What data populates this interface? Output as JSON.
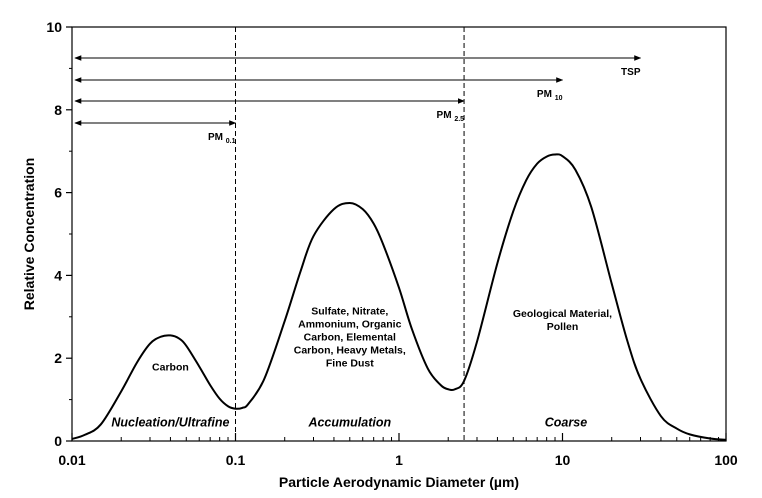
{
  "chart_data": {
    "type": "line",
    "xlabel": "Particle Aerodynamic Diameter (µm)",
    "ylabel": "Relative Concentration",
    "xscale": "log",
    "xlim": [
      0.01,
      100
    ],
    "ylim": [
      0,
      10
    ],
    "xticks": [
      {
        "value": 0.01,
        "label": "0.01"
      },
      {
        "value": 0.1,
        "label": "0.1"
      },
      {
        "value": 1,
        "label": "1"
      },
      {
        "value": 10,
        "label": "10"
      },
      {
        "value": 100,
        "label": "100"
      }
    ],
    "yticks": [
      {
        "value": 0,
        "label": "0"
      },
      {
        "value": 2,
        "label": "2"
      },
      {
        "value": 4,
        "label": "4"
      },
      {
        "value": 6,
        "label": "6"
      },
      {
        "value": 8,
        "label": "8"
      },
      {
        "value": 10,
        "label": "10"
      }
    ],
    "grid": false,
    "series": [
      {
        "x": [
          0.01,
          0.012,
          0.015,
          0.02,
          0.025,
          0.03,
          0.035,
          0.04,
          0.045,
          0.05,
          0.06,
          0.07,
          0.08,
          0.09,
          0.1,
          0.11,
          0.12,
          0.15,
          0.2,
          0.25,
          0.3,
          0.4,
          0.5,
          0.6,
          0.7,
          0.8,
          1,
          1.2,
          1.5,
          1.8,
          2,
          2.2,
          2.5,
          3,
          4,
          5,
          6,
          7,
          8,
          9,
          10,
          12,
          15,
          20,
          25,
          30,
          40,
          50,
          60,
          80,
          100
        ],
        "y": [
          0.05,
          0.15,
          0.4,
          1.2,
          1.9,
          2.35,
          2.52,
          2.55,
          2.48,
          2.3,
          1.8,
          1.35,
          1.02,
          0.84,
          0.78,
          0.8,
          0.9,
          1.5,
          2.9,
          4.1,
          4.95,
          5.6,
          5.75,
          5.6,
          5.25,
          4.75,
          3.7,
          2.7,
          1.75,
          1.35,
          1.25,
          1.25,
          1.45,
          2.4,
          4.3,
          5.55,
          6.3,
          6.7,
          6.87,
          6.92,
          6.88,
          6.55,
          5.65,
          3.8,
          2.4,
          1.5,
          0.6,
          0.3,
          0.16,
          0.06,
          0.03
        ]
      }
    ],
    "dashed_vlines": [
      0.1,
      2.5
    ],
    "size_ranges": [
      {
        "label": "TSP",
        "sub": "",
        "x_from": 0.01,
        "x_to": 30
      },
      {
        "label": "PM",
        "sub": "10",
        "x_from": 0.01,
        "x_to": 10
      },
      {
        "label": "PM",
        "sub": "2.5",
        "x_from": 0.01,
        "x_to": 2.5
      },
      {
        "label": "PM",
        "sub": "0.1",
        "x_from": 0.01,
        "x_to": 0.1
      }
    ],
    "annotations": [
      {
        "lines": [
          "Carbon"
        ],
        "x": 0.04,
        "y": 1.7
      },
      {
        "lines": [
          "Sulfate, Nitrate,",
          "Ammonium, Organic",
          "Carbon,  Elemental",
          "Carbon, Heavy Metals,",
          "Fine Dust"
        ],
        "x": 0.5,
        "y": 3.05
      },
      {
        "lines": [
          "Geological Material,",
          "Pollen"
        ],
        "x": 10,
        "y": 3.0
      }
    ],
    "modes": [
      {
        "label": "Nucleation/Ultrafine",
        "x": 0.04,
        "y": 0.35
      },
      {
        "label": "Accumulation",
        "x": 0.5,
        "y": 0.35
      },
      {
        "label": "Coarse",
        "x": 10.5,
        "y": 0.35
      }
    ]
  }
}
